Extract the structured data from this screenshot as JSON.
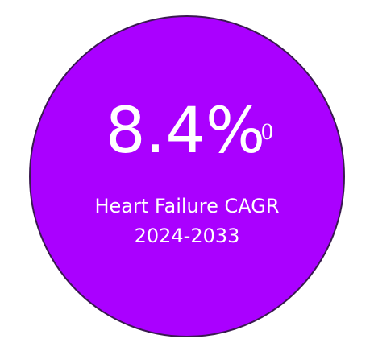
{
  "stat": {
    "value": "8.4%",
    "superscript": "0",
    "label_lines": [
      "Heart Failure CAGR",
      "2024-2033"
    ]
  }
}
